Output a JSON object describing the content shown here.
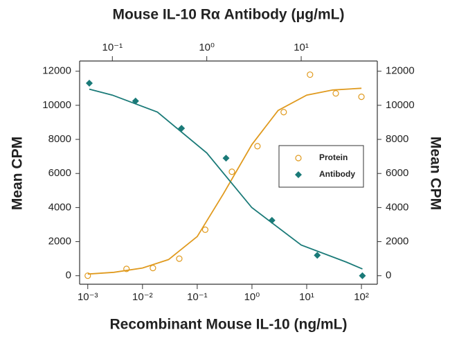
{
  "chart_data": {
    "type": "scatter",
    "title": "Mouse IL-10 Rα Antibody (μg/mL)",
    "xlabel": "Recombinant Mouse IL-10 (ng/mL)",
    "ylabel": "Mean CPM",
    "y2label": "Mean CPM",
    "xscale": "log",
    "x2scale": "log",
    "xlim": [
      0.00071,
      195
    ],
    "xticks": [
      {
        "value": 0.001,
        "label": "10⁻³"
      },
      {
        "value": 0.01,
        "label": "10⁻²"
      },
      {
        "value": 0.1,
        "label": "10⁻¹"
      },
      {
        "value": 1,
        "label": "10⁰"
      },
      {
        "value": 10,
        "label": "10¹"
      },
      {
        "value": 100,
        "label": "10²"
      }
    ],
    "x2lim": [
      0.045,
      64
    ],
    "x2ticks": [
      {
        "value": 0.1,
        "label": "10⁻¹"
      },
      {
        "value": 1,
        "label": "10⁰"
      },
      {
        "value": 10,
        "label": "10¹"
      }
    ],
    "ylim": [
      -500,
      12600
    ],
    "yticks": [
      0,
      2000,
      4000,
      6000,
      8000,
      10000,
      12000
    ],
    "y2lim": [
      -500,
      12600
    ],
    "y2ticks": [
      0,
      2000,
      4000,
      6000,
      8000,
      10000,
      12000
    ],
    "legend": "right",
    "series": [
      {
        "name": "Protein",
        "color": "#e09a1e",
        "marker": "circle",
        "xaxis": "x",
        "x": [
          0.001,
          0.0051,
          0.0155,
          0.047,
          0.14,
          0.43,
          1.26,
          3.8,
          11.5,
          34,
          100
        ],
        "values": [
          0,
          400,
          450,
          1000,
          2700,
          6100,
          7600,
          9600,
          11800,
          10700,
          10500
        ]
      },
      {
        "name": "Antibody",
        "color": "#1a7a78",
        "marker": "diamond",
        "xaxis": "x2",
        "x": [
          0.057,
          0.176,
          0.54,
          1.6,
          4.9,
          14.8,
          44.5
        ],
        "values": [
          11300,
          10250,
          8650,
          6900,
          3250,
          1200,
          0
        ]
      }
    ],
    "curves": [
      {
        "color": "#e09a1e",
        "xaxis": "x",
        "x": [
          0.001,
          0.003,
          0.01,
          0.03,
          0.1,
          0.3,
          1,
          3,
          10,
          30,
          100
        ],
        "values": [
          100,
          200,
          450,
          950,
          2300,
          4800,
          7700,
          9700,
          10600,
          10900,
          11000
        ]
      },
      {
        "color": "#1a7a78",
        "xaxis": "x2",
        "x": [
          0.057,
          0.1,
          0.3,
          1,
          3,
          10,
          30,
          44.5
        ],
        "values": [
          10950,
          10600,
          9600,
          7200,
          4000,
          1800,
          800,
          400
        ]
      }
    ]
  }
}
